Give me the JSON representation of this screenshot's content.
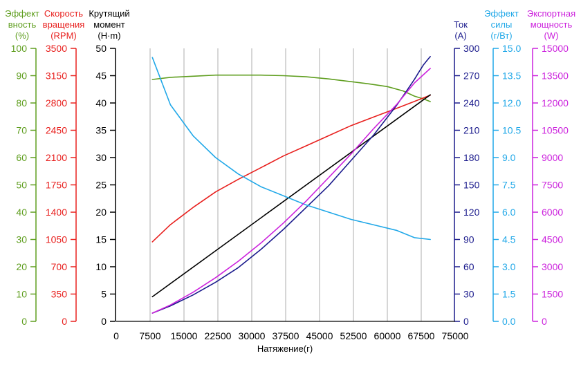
{
  "chart_data": {
    "type": "line",
    "xlabel": "Натяжение(г)",
    "xlim": [
      0,
      75000
    ],
    "x_ticks": [
      "0",
      "7500",
      "15000",
      "22500",
      "30000",
      "37500",
      "45000",
      "52500",
      "60000",
      "67500",
      "75000"
    ],
    "grid_x": true,
    "axes": [
      {
        "id": "eff",
        "side": "left",
        "label": [
          "Эффект",
          "вность",
          "(%)"
        ],
        "color": "#5f9e1f",
        "min": 0,
        "max": 100,
        "ticks": [
          "0",
          "10",
          "20",
          "30",
          "40",
          "50",
          "60",
          "70",
          "80",
          "90",
          "100"
        ]
      },
      {
        "id": "rpm",
        "side": "left",
        "label": [
          "Скорость",
          "вращения",
          "(RPM)"
        ],
        "color": "#e8201e",
        "min": 0,
        "max": 3500,
        "ticks": [
          "0",
          "350",
          "700",
          "1050",
          "1400",
          "1750",
          "2100",
          "2450",
          "2800",
          "3150",
          "3500"
        ]
      },
      {
        "id": "torque",
        "side": "left",
        "label": [
          "Крутящий",
          "момент",
          "(Н·m)"
        ],
        "color": "#000000",
        "min": 0,
        "max": 50,
        "ticks": [
          "0",
          "5",
          "10",
          "15",
          "20",
          "25",
          "30",
          "35",
          "40",
          "45",
          "50"
        ]
      },
      {
        "id": "current",
        "side": "right",
        "label": [
          "Ток",
          "(A)"
        ],
        "color": "#1a1a8c",
        "min": 0,
        "max": 300,
        "ticks": [
          "0",
          "30",
          "60",
          "90",
          "120",
          "150",
          "180",
          "210",
          "240",
          "270",
          "300"
        ]
      },
      {
        "id": "forceeff",
        "side": "right",
        "label": [
          "Эффект",
          "силы",
          "(г/Вт)"
        ],
        "color": "#21a8e8",
        "min": 0,
        "max": 15,
        "ticks": [
          "0.0",
          "1.5",
          "3.0",
          "4.5",
          "6.0",
          "7.5",
          "9.0",
          "10.5",
          "12.0",
          "13.5",
          "15.0"
        ]
      },
      {
        "id": "power",
        "side": "right",
        "label": [
          "Экспортная",
          "мощность",
          "(W)"
        ],
        "color": "#cc22dd",
        "min": 0,
        "max": 15000,
        "ticks": [
          "0",
          "1500",
          "3000",
          "4500",
          "6000",
          "7500",
          "9000",
          "10500",
          "12000",
          "13500",
          "15000"
        ]
      }
    ],
    "series": [
      {
        "axis": "eff",
        "color": "#5f9e1f",
        "x": [
          8000,
          12000,
          17000,
          22000,
          27000,
          32000,
          37000,
          42000,
          47000,
          52000,
          56000,
          60000,
          63500,
          66000,
          68000,
          69500
        ],
        "y": [
          88.6,
          89.4,
          89.8,
          90.2,
          90.2,
          90.2,
          90.0,
          89.6,
          88.8,
          87.8,
          87.0,
          86.0,
          84.4,
          82.5,
          81.5,
          80.5
        ]
      },
      {
        "axis": "rpm",
        "color": "#e8201e",
        "x": [
          8000,
          12000,
          17000,
          22000,
          27000,
          32000,
          37000,
          42000,
          47000,
          52000,
          57000,
          62000,
          66000,
          69500
        ],
        "y": [
          1020,
          1240,
          1460,
          1660,
          1820,
          1970,
          2120,
          2250,
          2380,
          2510,
          2620,
          2730,
          2820,
          2900
        ]
      },
      {
        "axis": "torque",
        "color": "#000000",
        "x": [
          8000,
          69500
        ],
        "y": [
          4.5,
          41.5
        ]
      },
      {
        "axis": "current",
        "color": "#1a1a8c",
        "x": [
          8000,
          12000,
          17000,
          22000,
          27000,
          32000,
          37000,
          42000,
          47000,
          52000,
          57000,
          62000,
          64500,
          66000,
          67000,
          68000,
          69000,
          69500
        ],
        "y": [
          9,
          17,
          29,
          43,
          59,
          79,
          101,
          125,
          149,
          177,
          205,
          237,
          255,
          266,
          274,
          282,
          288,
          291
        ]
      },
      {
        "axis": "forceeff",
        "color": "#21a8e8",
        "x": [
          8000,
          12000,
          17000,
          22000,
          27000,
          32000,
          37000,
          42000,
          47000,
          52000,
          57000,
          62000,
          66000,
          69500
        ],
        "y": [
          14.5,
          11.9,
          10.2,
          9.0,
          8.1,
          7.4,
          6.9,
          6.4,
          6.0,
          5.6,
          5.3,
          5.0,
          4.6,
          4.5
        ]
      },
      {
        "axis": "power",
        "color": "#cc22dd",
        "x": [
          8000,
          12000,
          17000,
          22000,
          27000,
          32000,
          37000,
          42000,
          47000,
          52000,
          57000,
          62000,
          66000,
          69500
        ],
        "y": [
          450,
          900,
          1600,
          2400,
          3300,
          4300,
          5400,
          6600,
          7900,
          9200,
          10600,
          11900,
          13100,
          13900
        ]
      }
    ]
  }
}
